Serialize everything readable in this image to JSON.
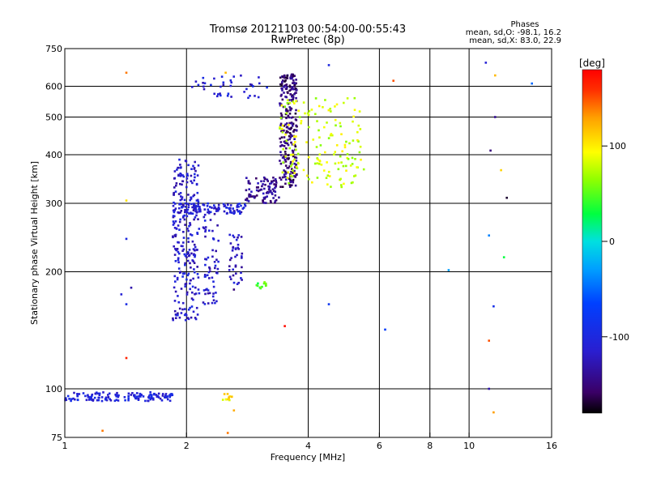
{
  "chart_data": {
    "type": "scatter",
    "title": "Tromsø 20121103 00:54:00-00:55:43",
    "subtitle": "RwPretec (8p)",
    "xlabel": "Frequency [MHz]",
    "ylabel": "Stationary phase Virtual Height [km]",
    "x_scale": "log",
    "y_scale": "log",
    "xlim": [
      1,
      16
    ],
    "ylim": [
      75,
      750
    ],
    "x_ticks": [
      1,
      2,
      4,
      6,
      8,
      10,
      16
    ],
    "y_ticks": [
      75,
      100,
      200,
      300,
      400,
      500,
      600,
      750
    ],
    "grid": true,
    "phase_stats": {
      "heading": "Phases",
      "line_O": "mean, sd,O: -98.1, 16.2",
      "line_X": "mean, sd,X:  83.0, 22.9"
    },
    "colorbar": {
      "label": "[deg]",
      "ticks": [
        100,
        0,
        -100
      ],
      "range": [
        -180,
        180
      ]
    },
    "point_groups": [
      {
        "note": "E-layer trace",
        "x_range": [
          1.0,
          1.85
        ],
        "y_range": [
          93,
          98
        ],
        "phase": -105,
        "n": 140
      },
      {
        "note": "F-layer lower band",
        "x_range": [
          1.85,
          2.8
        ],
        "y_range": [
          282,
          300
        ],
        "phase": -110,
        "n": 90
      },
      {
        "note": "F-layer blob 2 MHz",
        "x_range": [
          1.85,
          2.15
        ],
        "y_range": [
          150,
          390
        ],
        "phase": -115,
        "n": 260
      },
      {
        "note": "column 2.2-2.4 MHz",
        "x_range": [
          2.2,
          2.4
        ],
        "y_range": [
          165,
          300
        ],
        "phase": -115,
        "n": 70
      },
      {
        "note": "column 2.55-2.75 MHz",
        "x_range": [
          2.55,
          2.75
        ],
        "y_range": [
          185,
          250
        ],
        "phase": -120,
        "n": 40
      },
      {
        "note": "F-layer rising trace",
        "x_range": [
          2.8,
          3.4
        ],
        "y_range": [
          300,
          350
        ],
        "phase": -140,
        "n": 90
      },
      {
        "note": "F-layer cusp",
        "x_range": [
          3.4,
          3.75
        ],
        "y_range": [
          330,
          650
        ],
        "phase": -150,
        "n": 260
      },
      {
        "note": "upper trace 2.05-3.2 MHz",
        "x_range": [
          2.05,
          3.2
        ],
        "y_range": [
          560,
          640
        ],
        "phase": -110,
        "n": 40
      },
      {
        "note": "X-mode cluster",
        "x_range": [
          3.4,
          5.5
        ],
        "y_range": [
          330,
          560
        ],
        "phase": 80,
        "n": 160
      },
      {
        "note": "green cluster 3.0 MHz",
        "x_range": [
          2.95,
          3.15
        ],
        "y_range": [
          180,
          188
        ],
        "phase": 45,
        "n": 10
      },
      {
        "note": "yellow cluster 2.5 MHz",
        "x_range": [
          2.45,
          2.6
        ],
        "y_range": [
          93,
          97
        ],
        "phase": 100,
        "n": 12
      }
    ],
    "sparse_points": [
      [
        1.42,
        650,
        140
      ],
      [
        1.42,
        305,
        105
      ],
      [
        1.42,
        243,
        -100
      ],
      [
        1.42,
        165,
        -95
      ],
      [
        1.42,
        120,
        165
      ],
      [
        1.38,
        175,
        -110
      ],
      [
        1.46,
        182,
        -130
      ],
      [
        1.24,
        78,
        140
      ],
      [
        2.5,
        650,
        120
      ],
      [
        2.62,
        180,
        -150
      ],
      [
        2.53,
        77,
        140
      ],
      [
        2.62,
        88,
        125
      ],
      [
        3.5,
        145,
        175
      ],
      [
        4.5,
        680,
        -100
      ],
      [
        4.5,
        165,
        -80
      ],
      [
        6.5,
        620,
        150
      ],
      [
        6.2,
        142,
        -70
      ],
      [
        8.9,
        202,
        -30
      ],
      [
        11.6,
        640,
        120
      ],
      [
        11.6,
        500,
        -140
      ],
      [
        11.3,
        410,
        -150
      ],
      [
        12.0,
        365,
        110
      ],
      [
        12.4,
        310,
        -170
      ],
      [
        11.2,
        248,
        -40
      ],
      [
        12.2,
        218,
        30
      ],
      [
        11.5,
        163,
        -90
      ],
      [
        11.2,
        133,
        150
      ],
      [
        11.2,
        100,
        -130
      ],
      [
        11.5,
        87,
        130
      ],
      [
        14.3,
        610,
        -50
      ],
      [
        11.0,
        690,
        -110
      ],
      [
        3.1,
        318,
        -120
      ],
      [
        3.12,
        188,
        60
      ],
      [
        3.0,
        184,
        45
      ]
    ]
  }
}
